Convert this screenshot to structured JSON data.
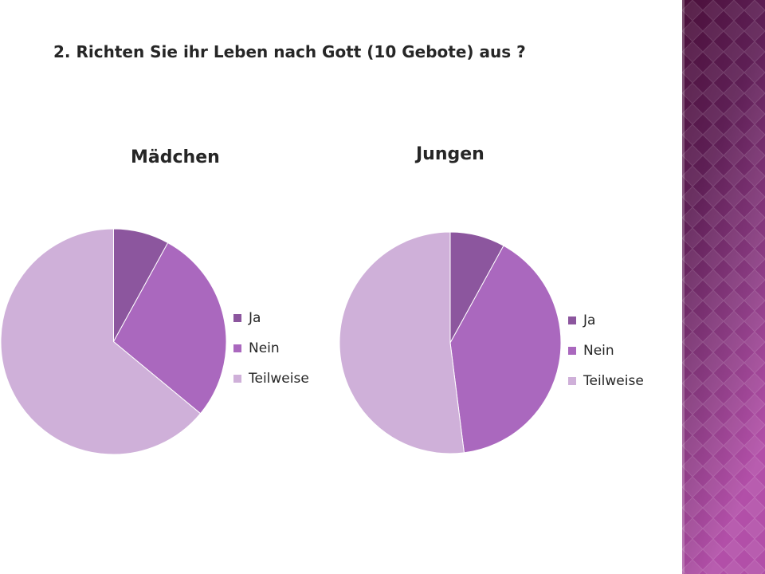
{
  "slide": {
    "title": "2. Richten Sie ihr Leben nach Gott  (10 Gebote) aus ?"
  },
  "theme": {
    "band_colors": [
      "#4a0f3a",
      "#5e1f55",
      "#8a3b82",
      "#b24fa8"
    ]
  },
  "chart_data": [
    {
      "type": "pie",
      "title": "Mädchen",
      "categories": [
        "Ja",
        "Nein",
        "Teilweise"
      ],
      "values": [
        8,
        28,
        64
      ],
      "colors": [
        "#8c569e",
        "#aa68be",
        "#cfb0d9"
      ],
      "legend": "right"
    },
    {
      "type": "pie",
      "title": "Jungen",
      "categories": [
        "Ja",
        "Nein",
        "Teilweise"
      ],
      "values": [
        8,
        40,
        52
      ],
      "colors": [
        "#8c569e",
        "#aa68be",
        "#cfb0d9"
      ],
      "legend": "right"
    }
  ]
}
